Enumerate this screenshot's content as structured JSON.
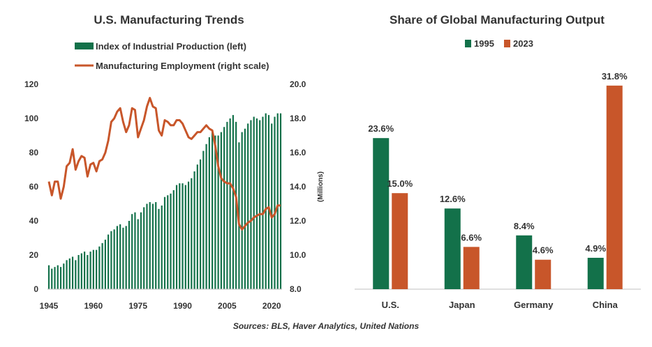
{
  "colors": {
    "green": "#13714a",
    "orange": "#c8562a",
    "axis": "#bfbfbf",
    "text": "#333333"
  },
  "source": "Sources: BLS, Haver Analytics, United Nations",
  "chart_data": [
    {
      "type": "bar",
      "title": "U.S. Manufacturing  Trends",
      "legend": [
        "Index of Industrial Production (left)",
        "Manufacturing Employment (right scale)"
      ],
      "x_ticks": [
        "1945",
        "1960",
        "1975",
        "1990",
        "2005",
        "2020"
      ],
      "y_left_ticks": [
        "0",
        "20",
        "40",
        "60",
        "80",
        "100",
        "120"
      ],
      "y_right_ticks": [
        "8.0",
        "10.0",
        "12.0",
        "14.0",
        "16.0",
        "18.0",
        "20.0"
      ],
      "ylabel_right": "(Millions)",
      "ylim_left": [
        0,
        120
      ],
      "ylim_right": [
        8,
        20
      ],
      "x_range": [
        1945,
        2023
      ],
      "series": [
        {
          "name": "Index of Industrial Production (left)",
          "type": "bar",
          "x": [
            1945,
            1946,
            1947,
            1948,
            1949,
            1950,
            1951,
            1952,
            1953,
            1954,
            1955,
            1956,
            1957,
            1958,
            1959,
            1960,
            1961,
            1962,
            1963,
            1964,
            1965,
            1966,
            1967,
            1968,
            1969,
            1970,
            1971,
            1972,
            1973,
            1974,
            1975,
            1976,
            1977,
            1978,
            1979,
            1980,
            1981,
            1982,
            1983,
            1984,
            1985,
            1986,
            1987,
            1988,
            1989,
            1990,
            1991,
            1992,
            1993,
            1994,
            1995,
            1996,
            1997,
            1998,
            1999,
            2000,
            2001,
            2002,
            2003,
            2004,
            2005,
            2006,
            2007,
            2008,
            2009,
            2010,
            2011,
            2012,
            2013,
            2014,
            2015,
            2016,
            2017,
            2018,
            2019,
            2020,
            2021,
            2022,
            2023
          ],
          "values": [
            14,
            12,
            13,
            14,
            13,
            15,
            17,
            18,
            19,
            17,
            20,
            21,
            22,
            20,
            22,
            23,
            23,
            25,
            27,
            29,
            32,
            34,
            35,
            37,
            38,
            36,
            37,
            40,
            44,
            45,
            41,
            45,
            48,
            50,
            51,
            50,
            51,
            47,
            49,
            54,
            55,
            56,
            58,
            61,
            62,
            62,
            61,
            63,
            65,
            69,
            73,
            76,
            81,
            85,
            89,
            92,
            90,
            90,
            92,
            95,
            98,
            100,
            102,
            98,
            86,
            92,
            94,
            97,
            99,
            101,
            100,
            99,
            101,
            103,
            102,
            97,
            101,
            103,
            103
          ]
        },
        {
          "name": "Manufacturing Employment (right scale)",
          "type": "line",
          "x": [
            1945,
            1946,
            1947,
            1948,
            1949,
            1950,
            1951,
            1952,
            1953,
            1954,
            1955,
            1956,
            1957,
            1958,
            1959,
            1960,
            1961,
            1962,
            1963,
            1964,
            1965,
            1966,
            1967,
            1968,
            1969,
            1970,
            1971,
            1972,
            1973,
            1974,
            1975,
            1976,
            1977,
            1978,
            1979,
            1980,
            1981,
            1982,
            1983,
            1984,
            1985,
            1986,
            1987,
            1988,
            1989,
            1990,
            1991,
            1992,
            1993,
            1994,
            1995,
            1996,
            1997,
            1998,
            1999,
            2000,
            2001,
            2002,
            2003,
            2004,
            2005,
            2006,
            2007,
            2008,
            2009,
            2010,
            2011,
            2012,
            2013,
            2014,
            2015,
            2016,
            2017,
            2018,
            2019,
            2020,
            2021,
            2022,
            2023
          ],
          "values": [
            14.3,
            13.5,
            14.3,
            14.3,
            13.3,
            14.0,
            15.2,
            15.4,
            16.2,
            15.0,
            15.5,
            15.8,
            15.7,
            14.6,
            15.3,
            15.4,
            14.9,
            15.5,
            15.6,
            16.0,
            16.7,
            17.8,
            18.0,
            18.4,
            18.6,
            17.8,
            17.2,
            17.6,
            18.6,
            18.5,
            16.9,
            17.4,
            17.9,
            18.7,
            19.2,
            18.7,
            18.6,
            17.3,
            17.0,
            17.9,
            17.8,
            17.6,
            17.6,
            17.9,
            17.9,
            17.7,
            17.3,
            16.9,
            16.8,
            17.0,
            17.2,
            17.2,
            17.4,
            17.6,
            17.4,
            17.3,
            16.4,
            15.2,
            14.5,
            14.3,
            14.2,
            14.2,
            13.9,
            13.4,
            11.8,
            11.5,
            11.7,
            11.9,
            12.0,
            12.2,
            12.3,
            12.4,
            12.4,
            12.7,
            12.8,
            12.2,
            12.4,
            12.9,
            12.9
          ]
        }
      ]
    },
    {
      "type": "bar",
      "title": "Share of Global Manufacturing  Output",
      "categories": [
        "U.S.",
        "Japan",
        "Germany",
        "China"
      ],
      "ylim": [
        0,
        32
      ],
      "series": [
        {
          "name": "1995",
          "values": [
            23.6,
            12.6,
            8.4,
            4.9
          ],
          "labels": [
            "23.6%",
            "12.6%",
            "8.4%",
            "4.9%"
          ]
        },
        {
          "name": "2023",
          "values": [
            15.0,
            6.6,
            4.6,
            31.8
          ],
          "labels": [
            "15.0%",
            "6.6%",
            "4.6%",
            "31.8%"
          ]
        }
      ]
    }
  ]
}
